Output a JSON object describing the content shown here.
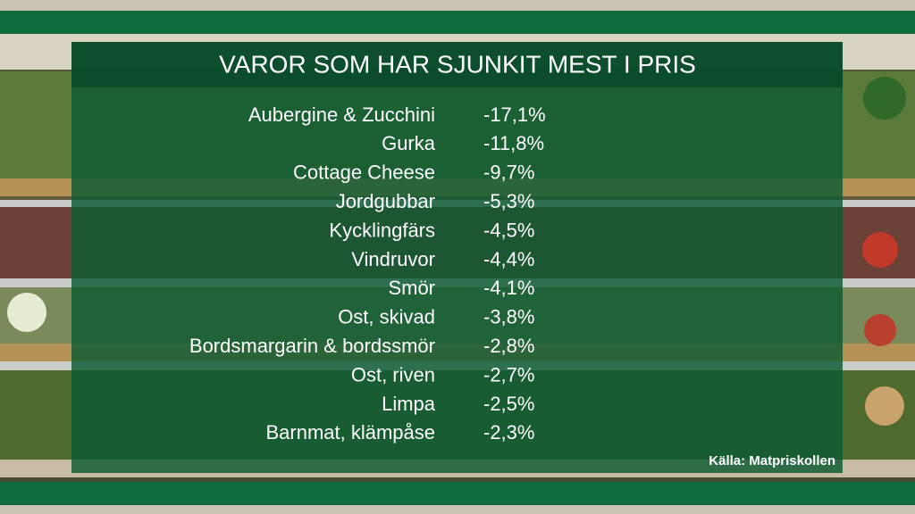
{
  "header": {
    "title": "VAROR SOM HAR SJUNKIT MEST I PRIS"
  },
  "table": {
    "rows": [
      [
        "Aubergine & Zucchini",
        "-17,1%"
      ],
      [
        "Gurka",
        "-11,8%"
      ],
      [
        "Cottage Cheese",
        "-9,7%"
      ],
      [
        "Jordgubbar",
        "-5,3%"
      ],
      [
        "Kycklingfärs",
        "-4,5%"
      ],
      [
        "Vindruvor",
        "-4,4%"
      ],
      [
        "Smör",
        "-4,1%"
      ],
      [
        "Ost, skivad",
        "-3,8%"
      ],
      [
        "Bordsmargarin & bordssmör",
        "-2,8%"
      ],
      [
        "Ost, riven",
        "-2,7%"
      ],
      [
        "Limpa",
        "-2,5%"
      ],
      [
        "Barnmat, klämpåse",
        "-2,3%"
      ]
    ]
  },
  "footer": {
    "source": "Källa: Matpriskollen"
  }
}
